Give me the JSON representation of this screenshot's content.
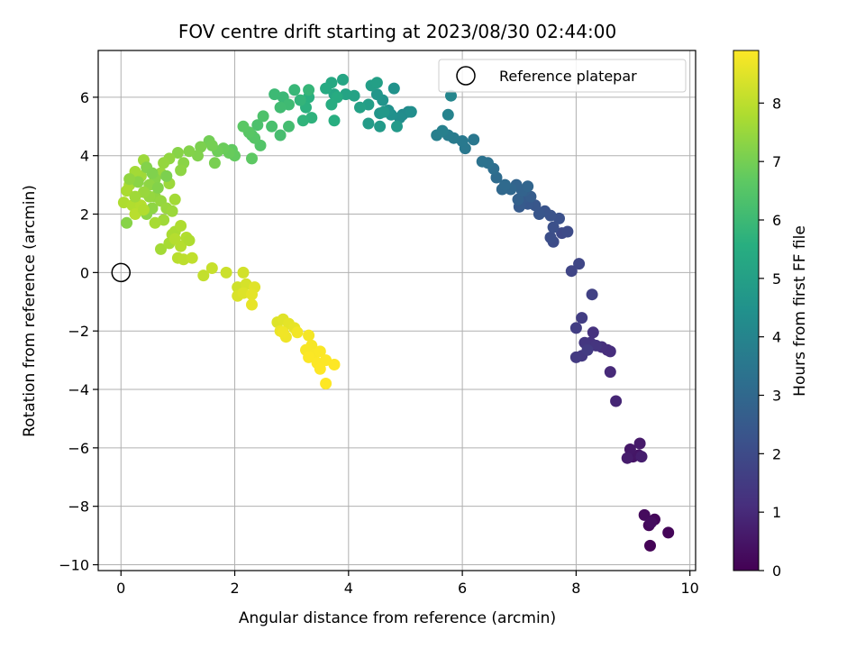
{
  "chart_data": {
    "type": "scatter",
    "title": "FOV centre drift starting at 2023/08/30 02:44:00",
    "xlabel": "Angular distance from reference (arcmin)",
    "ylabel": "Rotation from reference (arcmin)",
    "xlim": [
      -0.4,
      10.1
    ],
    "ylim": [
      -10.2,
      7.6
    ],
    "xticks": [
      0,
      2,
      4,
      6,
      8,
      10
    ],
    "yticks": [
      -10,
      -8,
      -6,
      -4,
      -2,
      0,
      2,
      4,
      6
    ],
    "grid": true,
    "legend": {
      "position": "top-right",
      "entries": [
        "Reference platepar"
      ]
    },
    "colorbar": {
      "label": "Hours from first FF file",
      "colormap": "viridis",
      "range": [
        0,
        8.9
      ],
      "ticks": [
        0,
        1,
        2,
        3,
        4,
        5,
        6,
        7,
        8
      ]
    },
    "reference": {
      "x": 0,
      "y": 0,
      "label": "Reference platepar"
    },
    "points": [
      [
        9.3,
        -9.35,
        0.05
      ],
      [
        9.62,
        -8.9,
        0.1
      ],
      [
        9.38,
        -8.45,
        0.15
      ],
      [
        9.28,
        -8.65,
        0.2
      ],
      [
        9.2,
        -8.3,
        0.25
      ],
      [
        9.32,
        -8.55,
        0.3
      ],
      [
        9.0,
        -6.3,
        0.45
      ],
      [
        9.1,
        -6.25,
        0.5
      ],
      [
        8.95,
        -6.05,
        0.55
      ],
      [
        9.12,
        -5.85,
        0.6
      ],
      [
        8.9,
        -6.35,
        0.65
      ],
      [
        9.15,
        -6.3,
        0.7
      ],
      [
        8.7,
        -4.4,
        0.9
      ],
      [
        8.6,
        -3.4,
        1.0
      ],
      [
        8.55,
        -2.65,
        1.05
      ],
      [
        8.6,
        -2.7,
        1.1
      ],
      [
        8.45,
        -2.55,
        1.15
      ],
      [
        8.3,
        -2.05,
        1.2
      ],
      [
        8.25,
        -2.4,
        1.25
      ],
      [
        8.35,
        -2.5,
        1.3
      ],
      [
        8.15,
        -2.4,
        1.35
      ],
      [
        8.1,
        -2.85,
        1.4
      ],
      [
        8.0,
        -2.9,
        1.45
      ],
      [
        8.2,
        -2.65,
        1.5
      ],
      [
        8.1,
        -1.55,
        1.55
      ],
      [
        8.0,
        -1.9,
        1.6
      ],
      [
        8.28,
        -0.75,
        1.7
      ],
      [
        7.92,
        0.05,
        1.8
      ],
      [
        8.05,
        0.3,
        1.85
      ],
      [
        7.75,
        1.35,
        1.95
      ],
      [
        7.85,
        1.4,
        2.0
      ],
      [
        7.6,
        1.05,
        2.05
      ],
      [
        7.55,
        1.2,
        2.1
      ],
      [
        7.6,
        1.55,
        2.15
      ],
      [
        7.7,
        1.85,
        2.2
      ],
      [
        7.55,
        1.95,
        2.25
      ],
      [
        7.45,
        2.1,
        2.3
      ],
      [
        7.35,
        2.0,
        2.35
      ],
      [
        7.28,
        2.3,
        2.4
      ],
      [
        7.15,
        2.35,
        2.45
      ],
      [
        7.05,
        2.5,
        2.5
      ],
      [
        7.0,
        2.25,
        2.55
      ],
      [
        7.2,
        2.6,
        2.6
      ],
      [
        7.1,
        2.8,
        2.7
      ],
      [
        6.98,
        2.5,
        2.75
      ],
      [
        7.05,
        2.8,
        2.8
      ],
      [
        6.95,
        3.0,
        2.85
      ],
      [
        7.15,
        2.95,
        2.9
      ],
      [
        6.85,
        2.85,
        2.95
      ],
      [
        6.7,
        2.85,
        3.0
      ],
      [
        6.75,
        3.0,
        3.05
      ],
      [
        6.6,
        3.25,
        3.1
      ],
      [
        6.55,
        3.55,
        3.2
      ],
      [
        6.45,
        3.75,
        3.3
      ],
      [
        6.35,
        3.8,
        3.35
      ],
      [
        6.2,
        4.55,
        3.5
      ],
      [
        6.05,
        4.25,
        3.55
      ],
      [
        6.0,
        4.5,
        3.6
      ],
      [
        5.85,
        4.6,
        3.65
      ],
      [
        5.75,
        4.7,
        3.7
      ],
      [
        5.55,
        4.7,
        3.8
      ],
      [
        5.65,
        4.85,
        3.85
      ],
      [
        5.75,
        5.4,
        3.95
      ],
      [
        5.8,
        6.05,
        4.05
      ],
      [
        5.05,
        5.5,
        4.2
      ],
      [
        4.95,
        5.4,
        4.25
      ],
      [
        4.9,
        5.3,
        4.3
      ],
      [
        5.1,
        5.5,
        4.35
      ],
      [
        4.75,
        5.4,
        4.4
      ],
      [
        4.7,
        5.55,
        4.45
      ],
      [
        4.8,
        6.3,
        4.5
      ],
      [
        4.6,
        5.9,
        4.55
      ],
      [
        4.55,
        5.45,
        4.6
      ],
      [
        4.5,
        6.1,
        4.65
      ],
      [
        4.62,
        5.5,
        4.7
      ],
      [
        4.85,
        5.0,
        4.75
      ],
      [
        4.55,
        5.0,
        4.8
      ],
      [
        4.35,
        5.1,
        4.85
      ],
      [
        4.35,
        5.75,
        4.9
      ],
      [
        4.4,
        6.4,
        4.95
      ],
      [
        4.5,
        6.5,
        5.0
      ],
      [
        4.2,
        5.65,
        5.05
      ],
      [
        4.1,
        6.05,
        5.1
      ],
      [
        3.95,
        6.1,
        5.15
      ],
      [
        3.9,
        6.6,
        5.2
      ],
      [
        3.75,
        6.1,
        5.25
      ],
      [
        3.7,
        6.5,
        5.35
      ],
      [
        3.6,
        6.3,
        5.4
      ],
      [
        3.8,
        6.0,
        5.45
      ],
      [
        3.7,
        5.75,
        5.5
      ],
      [
        3.75,
        5.2,
        5.55
      ],
      [
        3.3,
        6.0,
        5.6
      ],
      [
        3.25,
        5.65,
        5.65
      ],
      [
        3.35,
        5.3,
        5.7
      ],
      [
        3.2,
        5.2,
        5.75
      ],
      [
        3.15,
        5.9,
        5.8
      ],
      [
        3.3,
        6.25,
        5.85
      ],
      [
        3.05,
        6.25,
        5.9
      ],
      [
        2.85,
        6.0,
        5.95
      ],
      [
        2.7,
        6.1,
        6.0
      ],
      [
        2.95,
        5.75,
        6.05
      ],
      [
        2.8,
        5.65,
        6.1
      ],
      [
        2.95,
        5.0,
        6.15
      ],
      [
        2.8,
        4.7,
        6.2
      ],
      [
        2.65,
        5.0,
        6.25
      ],
      [
        2.4,
        5.05,
        6.3
      ],
      [
        2.5,
        5.35,
        6.35
      ],
      [
        2.3,
        4.7,
        6.4
      ],
      [
        2.45,
        4.35,
        6.45
      ],
      [
        2.35,
        4.6,
        6.5
      ],
      [
        2.25,
        4.8,
        6.55
      ],
      [
        2.15,
        5.0,
        6.6
      ],
      [
        2.3,
        3.9,
        6.65
      ],
      [
        1.95,
        4.2,
        6.7
      ],
      [
        2.0,
        4.0,
        6.75
      ],
      [
        1.9,
        4.1,
        6.8
      ],
      [
        1.8,
        4.25,
        6.85
      ],
      [
        1.7,
        4.15,
        6.9
      ],
      [
        1.55,
        4.5,
        6.95
      ],
      [
        1.6,
        4.35,
        7.0
      ],
      [
        1.65,
        3.75,
        7.05
      ],
      [
        1.4,
        4.3,
        7.1
      ],
      [
        1.35,
        4.0,
        7.15
      ],
      [
        1.2,
        4.15,
        7.2
      ],
      [
        1.0,
        4.1,
        7.25
      ],
      [
        1.1,
        3.75,
        7.3
      ],
      [
        1.05,
        3.5,
        7.35
      ],
      [
        0.85,
        3.9,
        7.4
      ],
      [
        0.75,
        3.75,
        7.45
      ],
      [
        0.7,
        3.4,
        7.5
      ],
      [
        0.4,
        3.85,
        7.55
      ],
      [
        0.35,
        3.3,
        7.6
      ],
      [
        0.25,
        3.45,
        7.65
      ],
      [
        0.15,
        3.0,
        7.7
      ],
      [
        0.1,
        2.8,
        7.75
      ],
      [
        0.05,
        2.4,
        7.8
      ],
      [
        0.2,
        2.3,
        7.85
      ],
      [
        0.35,
        2.3,
        7.9
      ],
      [
        0.25,
        2.0,
        7.95
      ],
      [
        0.1,
        1.7,
        7.25
      ],
      [
        0.45,
        2.0,
        7.3
      ],
      [
        0.55,
        2.2,
        7.35
      ],
      [
        0.6,
        2.6,
        7.4
      ],
      [
        0.7,
        2.45,
        7.45
      ],
      [
        0.8,
        2.2,
        7.5
      ],
      [
        0.9,
        2.1,
        7.55
      ],
      [
        0.75,
        1.8,
        7.6
      ],
      [
        0.7,
        0.8,
        7.65
      ],
      [
        0.85,
        1.0,
        7.7
      ],
      [
        0.95,
        1.4,
        7.75
      ],
      [
        1.05,
        1.6,
        7.8
      ],
      [
        1.15,
        1.2,
        7.85
      ],
      [
        1.05,
        0.9,
        7.9
      ],
      [
        1.0,
        0.5,
        7.95
      ],
      [
        1.1,
        0.45,
        8.0
      ],
      [
        1.25,
        0.5,
        8.05
      ],
      [
        1.45,
        -0.1,
        8.1
      ],
      [
        1.6,
        0.15,
        8.15
      ],
      [
        1.85,
        0.0,
        8.2
      ],
      [
        2.05,
        -0.5,
        8.25
      ],
      [
        2.15,
        0.0,
        8.3
      ],
      [
        2.2,
        -0.4,
        8.35
      ],
      [
        2.05,
        -0.8,
        8.4
      ],
      [
        2.15,
        -0.7,
        8.45
      ],
      [
        2.35,
        -0.5,
        8.5
      ],
      [
        2.3,
        -0.75,
        8.55
      ],
      [
        2.3,
        -1.1,
        8.6
      ],
      [
        2.75,
        -1.7,
        8.45
      ],
      [
        2.85,
        -1.6,
        8.5
      ],
      [
        2.95,
        -1.75,
        8.55
      ],
      [
        3.05,
        -1.9,
        8.6
      ],
      [
        2.8,
        -2.0,
        8.65
      ],
      [
        2.9,
        -2.2,
        8.7
      ],
      [
        2.85,
        -2.05,
        8.72
      ],
      [
        3.1,
        -2.05,
        8.75
      ],
      [
        3.3,
        -2.15,
        8.78
      ],
      [
        3.35,
        -2.5,
        8.8
      ],
      [
        3.25,
        -2.65,
        8.82
      ],
      [
        3.4,
        -2.8,
        8.84
      ],
      [
        3.5,
        -2.7,
        8.86
      ],
      [
        3.3,
        -2.9,
        8.87
      ],
      [
        3.45,
        -3.1,
        8.88
      ],
      [
        3.6,
        -3.0,
        8.89
      ],
      [
        3.5,
        -3.3,
        8.9
      ],
      [
        3.75,
        -3.15,
        8.9
      ],
      [
        3.6,
        -3.8,
        8.9
      ],
      [
        0.45,
        3.6,
        7.2
      ],
      [
        0.6,
        3.2,
        7.25
      ],
      [
        0.3,
        3.1,
        7.3
      ],
      [
        0.5,
        3.0,
        7.35
      ],
      [
        0.15,
        3.2,
        7.4
      ],
      [
        0.5,
        2.6,
        7.45
      ],
      [
        0.4,
        2.75,
        7.5
      ],
      [
        0.85,
        3.05,
        7.55
      ],
      [
        0.25,
        2.6,
        7.6
      ],
      [
        0.95,
        2.5,
        7.65
      ],
      [
        0.6,
        1.7,
        7.7
      ],
      [
        0.9,
        1.3,
        7.75
      ],
      [
        1.2,
        1.1,
        7.8
      ],
      [
        0.65,
        2.9,
        7.2
      ],
      [
        0.55,
        3.4,
        7.15
      ],
      [
        0.8,
        3.3,
        7.1
      ],
      [
        0.4,
        2.15,
        7.85
      ],
      [
        0.95,
        1.15,
        7.9
      ]
    ]
  }
}
